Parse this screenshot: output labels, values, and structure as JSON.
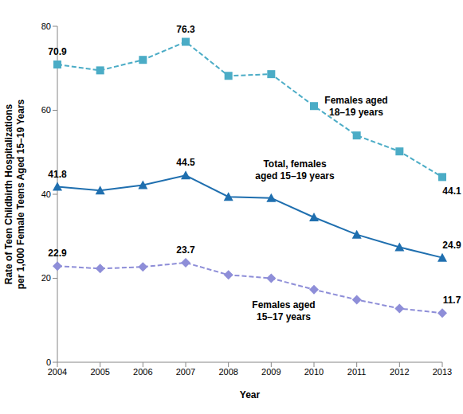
{
  "chart_data": {
    "type": "line",
    "x_label": "Year",
    "y_label": "Rate of Teen Childbirth Hospitalizations per 1,000 Female Teens Aged 15–19 Years",
    "categories": [
      "2004",
      "2005",
      "2006",
      "2007",
      "2008",
      "2009",
      "2010",
      "2011",
      "2012",
      "2013"
    ],
    "ylim": [
      0,
      80
    ],
    "yticks": [
      0,
      20,
      40,
      60,
      80
    ],
    "grid": false,
    "series": [
      {
        "name": "Females aged 18–19 years",
        "color": "#4BACC6",
        "marker": "square",
        "line_style": "dashed",
        "values": [
          70.9,
          69.5,
          72.0,
          76.3,
          68.2,
          68.6,
          61.0,
          54.0,
          50.2,
          44.1
        ],
        "value_labels": [
          "70.9",
          null,
          null,
          "76.3",
          null,
          null,
          null,
          null,
          null,
          "44.1"
        ]
      },
      {
        "name": "Total, females aged 15–19 years",
        "color": "#1F6FAF",
        "marker": "triangle",
        "line_style": "solid",
        "values": [
          41.8,
          40.9,
          42.2,
          44.5,
          39.4,
          39.1,
          34.5,
          30.4,
          27.4,
          24.9
        ],
        "value_labels": [
          "41.8",
          null,
          null,
          "44.5",
          null,
          null,
          null,
          null,
          null,
          "24.9"
        ]
      },
      {
        "name": "Females aged 15–17 years",
        "color": "#8E8ED8",
        "marker": "diamond",
        "line_style": "dashed",
        "values": [
          22.9,
          22.3,
          22.7,
          23.7,
          20.8,
          20.0,
          17.3,
          14.9,
          12.8,
          11.7
        ],
        "value_labels": [
          "22.9",
          null,
          null,
          "23.7",
          null,
          null,
          null,
          null,
          null,
          "11.7"
        ]
      }
    ]
  }
}
